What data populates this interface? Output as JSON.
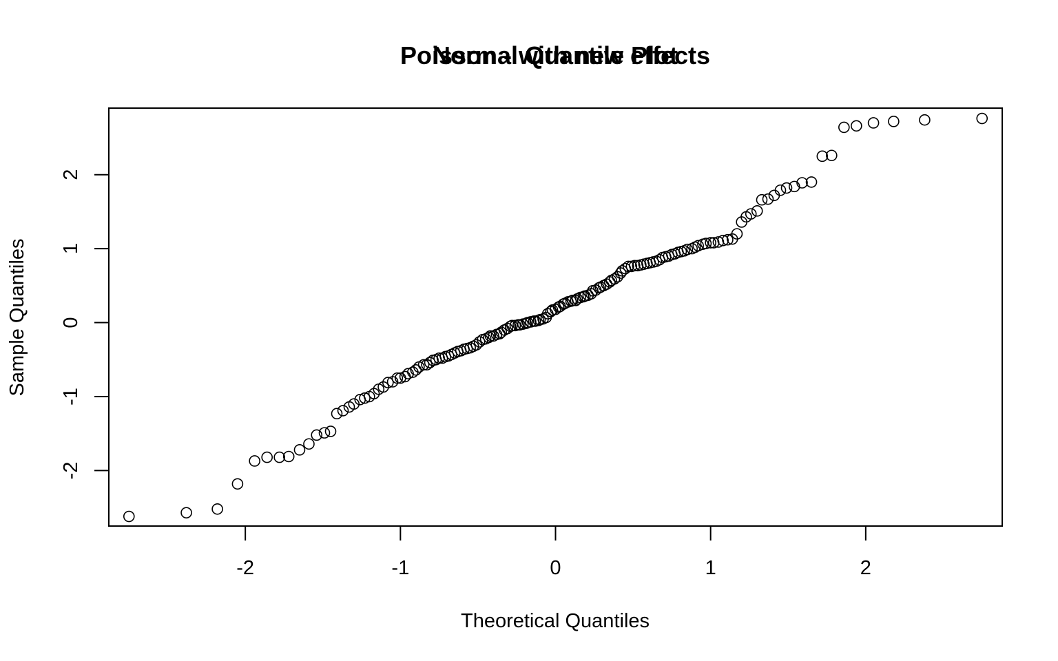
{
  "chart_data": {
    "type": "scatter",
    "title_layers": [
      "Poisson - with new effects",
      "Normal Quantile Plot"
    ],
    "xlabel": "Theoretical Quantiles",
    "ylabel": "Sample Quantiles",
    "xlim": [
      -2.88,
      2.88
    ],
    "ylim": [
      -2.75,
      2.9
    ],
    "x_ticks": [
      -2,
      -1,
      0,
      1,
      2
    ],
    "x_tick_labels": [
      "-2",
      "-1",
      "0",
      "1",
      "2"
    ],
    "y_ticks": [
      -2,
      -1,
      0,
      1,
      2
    ],
    "y_tick_labels": [
      "-2",
      "-1",
      "0",
      "1",
      "2"
    ],
    "grid": false,
    "legend": "none",
    "points_x": [
      -2.75,
      -2.38,
      -2.18,
      -2.05,
      -1.94,
      -1.86,
      -1.78,
      -1.72,
      -1.65,
      -1.59,
      -1.54,
      -1.49,
      -1.45,
      -1.41,
      -1.37,
      -1.33,
      -1.3,
      -1.26,
      -1.23,
      -1.2,
      -1.17,
      -1.14,
      -1.11,
      -1.08,
      -1.05,
      -1.02,
      -1.0,
      -0.97,
      -0.95,
      -0.92,
      -0.9,
      -0.88,
      -0.85,
      -0.83,
      -0.81,
      -0.79,
      -0.77,
      -0.75,
      -0.73,
      -0.71,
      -0.69,
      -0.67,
      -0.65,
      -0.63,
      -0.61,
      -0.59,
      -0.57,
      -0.55,
      -0.53,
      -0.51,
      -0.49,
      -0.47,
      -0.45,
      -0.43,
      -0.42,
      -0.4,
      -0.38,
      -0.36,
      -0.35,
      -0.33,
      -0.31,
      -0.29,
      -0.28,
      -0.26,
      -0.24,
      -0.23,
      -0.21,
      -0.19,
      -0.18,
      -0.16,
      -0.14,
      -0.13,
      -0.11,
      -0.1,
      -0.08,
      -0.06,
      -0.05,
      -0.03,
      -0.02,
      0.0,
      0.02,
      0.03,
      0.05,
      0.06,
      0.08,
      0.1,
      0.11,
      0.13,
      0.14,
      0.16,
      0.18,
      0.19,
      0.21,
      0.23,
      0.24,
      0.26,
      0.28,
      0.29,
      0.31,
      0.33,
      0.35,
      0.36,
      0.38,
      0.4,
      0.42,
      0.43,
      0.45,
      0.47,
      0.49,
      0.51,
      0.53,
      0.55,
      0.57,
      0.59,
      0.61,
      0.63,
      0.65,
      0.67,
      0.69,
      0.71,
      0.73,
      0.75,
      0.77,
      0.79,
      0.81,
      0.83,
      0.85,
      0.88,
      0.9,
      0.92,
      0.95,
      0.97,
      1.0,
      1.02,
      1.05,
      1.08,
      1.11,
      1.14,
      1.17,
      1.2,
      1.23,
      1.26,
      1.3,
      1.33,
      1.37,
      1.41,
      1.45,
      1.49,
      1.54,
      1.59,
      1.65,
      1.72,
      1.78,
      1.86,
      1.94,
      2.05,
      2.18,
      2.38,
      2.75
    ],
    "points_y": [
      -2.62,
      -2.57,
      -2.52,
      -2.18,
      -1.87,
      -1.82,
      -1.82,
      -1.81,
      -1.72,
      -1.64,
      -1.52,
      -1.49,
      -1.47,
      -1.23,
      -1.19,
      -1.14,
      -1.1,
      -1.04,
      -1.02,
      -1.0,
      -0.96,
      -0.9,
      -0.87,
      -0.81,
      -0.8,
      -0.75,
      -0.75,
      -0.73,
      -0.69,
      -0.67,
      -0.64,
      -0.6,
      -0.57,
      -0.57,
      -0.54,
      -0.51,
      -0.5,
      -0.48,
      -0.48,
      -0.46,
      -0.45,
      -0.43,
      -0.41,
      -0.39,
      -0.38,
      -0.36,
      -0.35,
      -0.34,
      -0.32,
      -0.3,
      -0.26,
      -0.23,
      -0.22,
      -0.2,
      -0.18,
      -0.18,
      -0.16,
      -0.15,
      -0.13,
      -0.1,
      -0.08,
      -0.05,
      -0.04,
      -0.04,
      -0.03,
      -0.03,
      -0.02,
      -0.01,
      0.0,
      0.01,
      0.02,
      0.02,
      0.03,
      0.04,
      0.05,
      0.07,
      0.12,
      0.15,
      0.17,
      0.18,
      0.21,
      0.22,
      0.25,
      0.26,
      0.28,
      0.29,
      0.3,
      0.3,
      0.32,
      0.34,
      0.35,
      0.36,
      0.37,
      0.39,
      0.43,
      0.44,
      0.47,
      0.48,
      0.5,
      0.52,
      0.55,
      0.57,
      0.59,
      0.62,
      0.67,
      0.7,
      0.73,
      0.76,
      0.76,
      0.77,
      0.77,
      0.78,
      0.79,
      0.8,
      0.81,
      0.82,
      0.83,
      0.85,
      0.88,
      0.89,
      0.9,
      0.92,
      0.93,
      0.95,
      0.96,
      0.97,
      0.99,
      1.0,
      1.02,
      1.04,
      1.06,
      1.07,
      1.08,
      1.08,
      1.09,
      1.11,
      1.12,
      1.13,
      1.2,
      1.36,
      1.43,
      1.47,
      1.51,
      1.66,
      1.67,
      1.72,
      1.79,
      1.82,
      1.84,
      1.89,
      1.9,
      2.25,
      2.26,
      2.64,
      2.66,
      2.7,
      2.72,
      2.74,
      2.76
    ]
  }
}
